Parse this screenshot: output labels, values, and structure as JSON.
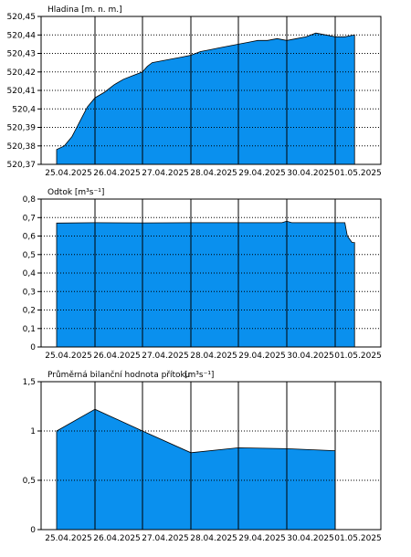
{
  "colors": {
    "fill": "#0a90ee",
    "edge": "#000000",
    "grid": "#000000",
    "background": "#ffffff"
  },
  "chart_data": [
    {
      "type": "area",
      "title": "Hladina [m. n. m.]",
      "x_ticks": [
        "25.04.2025",
        "26.04.2025",
        "27.04.2025",
        "28.04.2025",
        "29.04.2025",
        "30.04.2025",
        "01.05.2025"
      ],
      "y_ticks": [
        "520,37",
        "520,38",
        "520,39",
        "520,4",
        "520,41",
        "520,42",
        "520,43",
        "520,44",
        "520,45"
      ],
      "ylim": [
        520.37,
        520.45
      ],
      "xlim": [
        0,
        6.5
      ],
      "grid": "vertical solid, horizontal dotted",
      "series": [
        {
          "x": [
            0,
            0.2,
            0.4,
            0.5,
            0.6,
            0.7,
            0.8,
            1.0,
            1.2,
            1.4,
            1.6,
            1.8,
            2.0,
            2.1,
            2.2,
            2.4,
            2.6,
            2.8,
            3.0,
            3.2,
            3.4,
            3.6,
            3.8,
            4.0,
            4.2,
            4.4,
            4.6,
            4.8,
            5.0,
            5.2,
            5.4,
            5.6,
            5.8,
            6.0,
            6.2,
            6.4
          ],
          "y": [
            520.378,
            520.38,
            520.385,
            520.389,
            520.393,
            520.397,
            520.401,
            520.406,
            520.409,
            520.413,
            520.416,
            520.418,
            520.42,
            520.423,
            520.425,
            520.426,
            520.427,
            520.428,
            520.429,
            520.431,
            520.432,
            520.433,
            520.434,
            520.435,
            520.436,
            520.437,
            520.437,
            520.438,
            520.437,
            520.438,
            520.439,
            520.441,
            520.44,
            520.439,
            520.439,
            520.44
          ]
        }
      ]
    },
    {
      "type": "area",
      "title": "Odtok [m³s⁻¹]",
      "x_ticks": [
        "25.04.2025",
        "26.04.2025",
        "27.04.2025",
        "28.04.2025",
        "29.04.2025",
        "30.04.2025",
        "01.05.2025"
      ],
      "y_ticks": [
        "0",
        "0,1",
        "0,2",
        "0,3",
        "0,4",
        "0,5",
        "0,6",
        "0,7",
        "0,8"
      ],
      "ylim": [
        0,
        0.8
      ],
      "xlim": [
        0,
        6.5
      ],
      "grid": "vertical solid, horizontal dotted",
      "series": [
        {
          "x": [
            0,
            1.0,
            2.0,
            3.0,
            4.0,
            4.9,
            5.0,
            5.1,
            6.0,
            6.2,
            6.25,
            6.35,
            6.4
          ],
          "y": [
            0.67,
            0.672,
            0.671,
            0.672,
            0.672,
            0.672,
            0.68,
            0.672,
            0.672,
            0.672,
            0.6,
            0.565,
            0.565
          ]
        }
      ]
    },
    {
      "type": "area",
      "title": "Průměrná bilanční hodnota přítoku",
      "unit": "[m³s⁻¹]",
      "x_ticks": [
        "25.04.2025",
        "26.04.2025",
        "27.04.2025",
        "28.04.2025",
        "29.04.2025",
        "30.04.2025",
        "01.05.2025"
      ],
      "y_ticks": [
        "0",
        "0,5",
        "1",
        "1,5"
      ],
      "ylim": [
        0,
        1.5
      ],
      "xlim": [
        0,
        6.5
      ],
      "grid": "vertical solid, horizontal dotted",
      "series": [
        {
          "x": [
            0,
            1,
            2,
            3,
            4,
            5,
            6
          ],
          "y": [
            1.0,
            1.22,
            1.0,
            0.78,
            0.83,
            0.82,
            0.8
          ]
        }
      ]
    }
  ]
}
